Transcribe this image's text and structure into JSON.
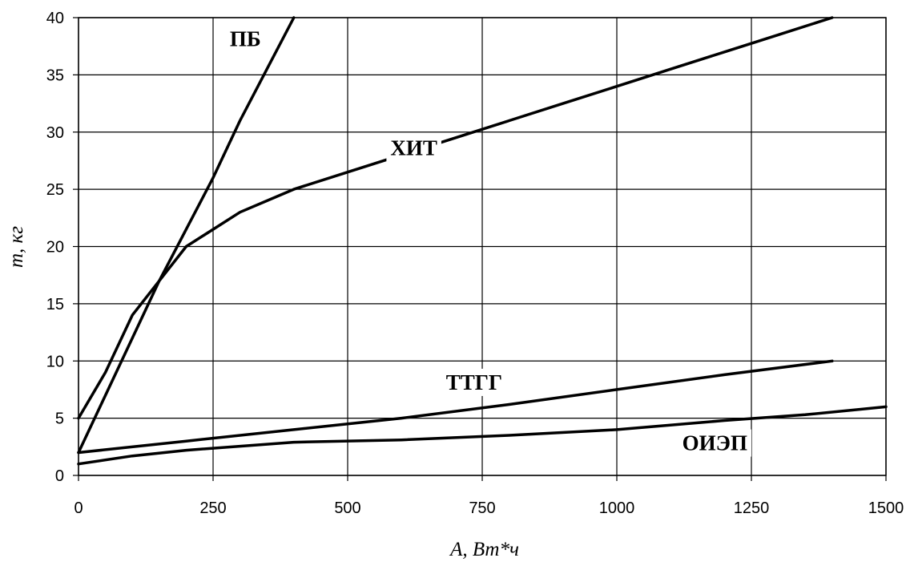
{
  "chart_data": {
    "type": "line",
    "xlabel": "A, Вт*ч",
    "ylabel": "m, кг",
    "xlim": [
      0,
      1500
    ],
    "ylim": [
      0,
      40
    ],
    "x_ticks": [
      "0",
      "250",
      "500",
      "750",
      "1000",
      "1250",
      "1500"
    ],
    "y_ticks": [
      "0",
      "5",
      "10",
      "15",
      "20",
      "25",
      "30",
      "35",
      "40"
    ],
    "grid": true,
    "series": [
      {
        "name": "ПБ",
        "points": [
          [
            0,
            2
          ],
          [
            50,
            7
          ],
          [
            100,
            12
          ],
          [
            150,
            17
          ],
          [
            200,
            21.5
          ],
          [
            250,
            26
          ],
          [
            300,
            31
          ],
          [
            350,
            35.5
          ],
          [
            400,
            40
          ]
        ]
      },
      {
        "name": "ХИТ",
        "points": [
          [
            0,
            5
          ],
          [
            50,
            9
          ],
          [
            100,
            14
          ],
          [
            150,
            17
          ],
          [
            200,
            20
          ],
          [
            250,
            21.5
          ],
          [
            300,
            23
          ],
          [
            400,
            25
          ],
          [
            500,
            26.5
          ],
          [
            600,
            28
          ],
          [
            700,
            29.5
          ],
          [
            800,
            31
          ],
          [
            900,
            32.5
          ],
          [
            1000,
            34
          ],
          [
            1100,
            35.5
          ],
          [
            1200,
            37
          ],
          [
            1300,
            38.5
          ],
          [
            1400,
            40
          ]
        ]
      },
      {
        "name": "ТТГГ",
        "points": [
          [
            0,
            2
          ],
          [
            200,
            3
          ],
          [
            400,
            4
          ],
          [
            600,
            5
          ],
          [
            800,
            6.2
          ],
          [
            1000,
            7.5
          ],
          [
            1200,
            8.8
          ],
          [
            1400,
            10
          ]
        ]
      },
      {
        "name": "ОИЭП",
        "points": [
          [
            0,
            1
          ],
          [
            100,
            1.7
          ],
          [
            200,
            2.2
          ],
          [
            400,
            2.9
          ],
          [
            600,
            3.1
          ],
          [
            800,
            3.5
          ],
          [
            1000,
            4
          ],
          [
            1200,
            4.8
          ],
          [
            1350,
            5.3
          ],
          [
            1500,
            6
          ]
        ]
      }
    ]
  }
}
